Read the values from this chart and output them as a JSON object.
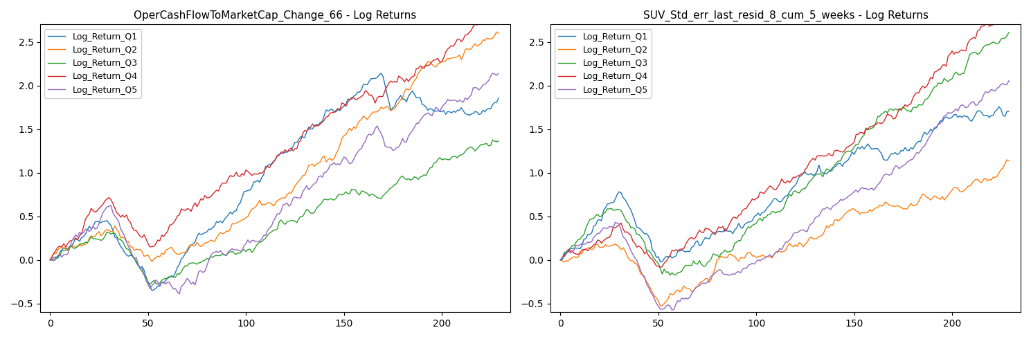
{
  "chart1_title": "OperCashFlowToMarketCap_Change_66 - Log Returns",
  "chart2_title": "SUV_Std_err_last_resid_8_cum_5_weeks - Log Returns",
  "legend_labels": [
    "Log_Return_Q1",
    "Log_Return_Q2",
    "Log_Return_Q3",
    "Log_Return_Q4",
    "Log_Return_Q5"
  ],
  "colors": [
    "#1f77b4",
    "#ff7f0e",
    "#2ca02c",
    "#d62728",
    "#9467bd"
  ],
  "ylim": [
    -0.6,
    2.7
  ],
  "xlim": [
    -5,
    235
  ],
  "xticks": [
    0,
    50,
    100,
    150,
    200
  ],
  "yticks": [
    -0.5,
    0.0,
    0.5,
    1.0,
    1.5,
    2.0,
    2.5
  ],
  "figsize": [
    14.89,
    4.9
  ],
  "dpi": 100
}
